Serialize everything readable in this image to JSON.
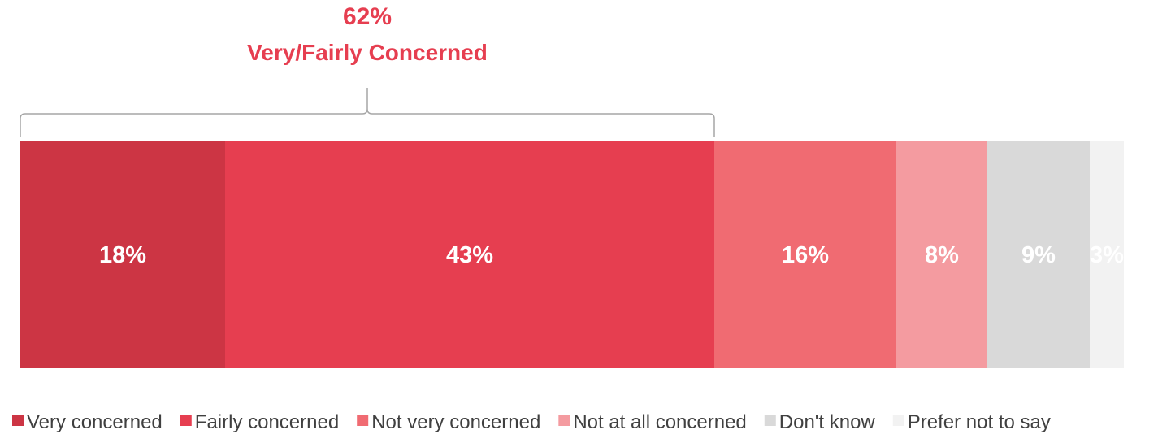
{
  "chart_data": {
    "type": "bar",
    "orientation": "horizontal",
    "stacked": true,
    "categories": [
      ""
    ],
    "series": [
      {
        "name": "Very concerned",
        "values": [
          18
        ],
        "label": "18%",
        "color": "#cc3544"
      },
      {
        "name": "Fairly concerned",
        "values": [
          43
        ],
        "label": "43%",
        "color": "#e63e50"
      },
      {
        "name": "Not very concerned",
        "values": [
          16
        ],
        "label": "16%",
        "color": "#f06b72"
      },
      {
        "name": "Not at all concerned",
        "values": [
          8
        ],
        "label": "8%",
        "color": "#f49ba0"
      },
      {
        "name": "Don't know",
        "values": [
          9
        ],
        "label": "9%",
        "color": "#d9d9d9"
      },
      {
        "name": "Prefer not to say",
        "values": [
          3
        ],
        "label": "3%",
        "color": "#f2f2f2"
      }
    ],
    "annotation": {
      "value": "62%",
      "text": "Very/Fairly Concerned",
      "spans_series": [
        "Very concerned",
        "Fairly concerned"
      ],
      "color": "#e63e50"
    },
    "legend_position": "bottom",
    "grid": false
  }
}
